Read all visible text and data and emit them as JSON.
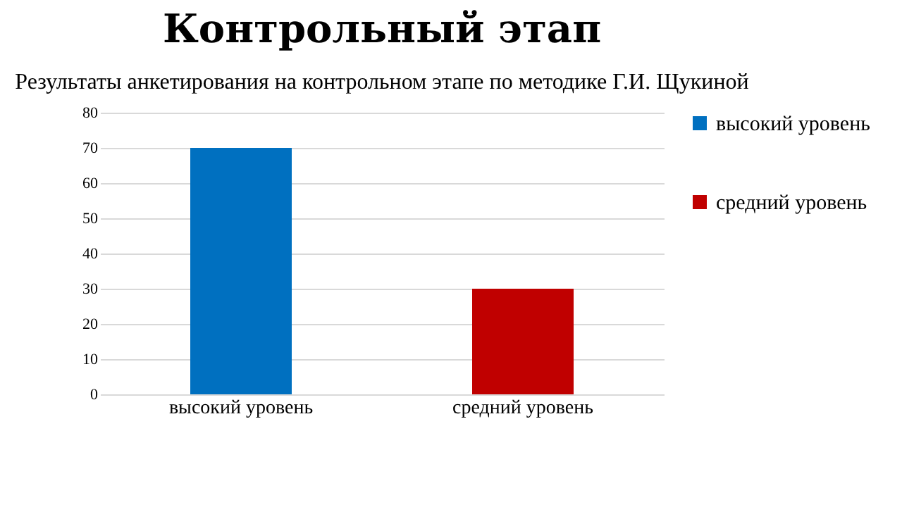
{
  "chart_data": {
    "type": "bar",
    "title": "Контрольный этап",
    "subtitle": "Результаты анкетирования на контрольном этапе по методике Г.И. Щукиной",
    "categories": [
      "высокий уровень",
      "средний уровень"
    ],
    "series": [
      {
        "name": "высокий уровень",
        "color": "#0070c0",
        "values": [
          70,
          null
        ]
      },
      {
        "name": "средний уровень",
        "color": "#c00000",
        "values": [
          null,
          30
        ]
      }
    ],
    "ylim": [
      0,
      80
    ],
    "yticks": [
      0,
      10,
      20,
      30,
      40,
      50,
      60,
      70,
      80
    ],
    "grid": "y",
    "legend": "right"
  }
}
